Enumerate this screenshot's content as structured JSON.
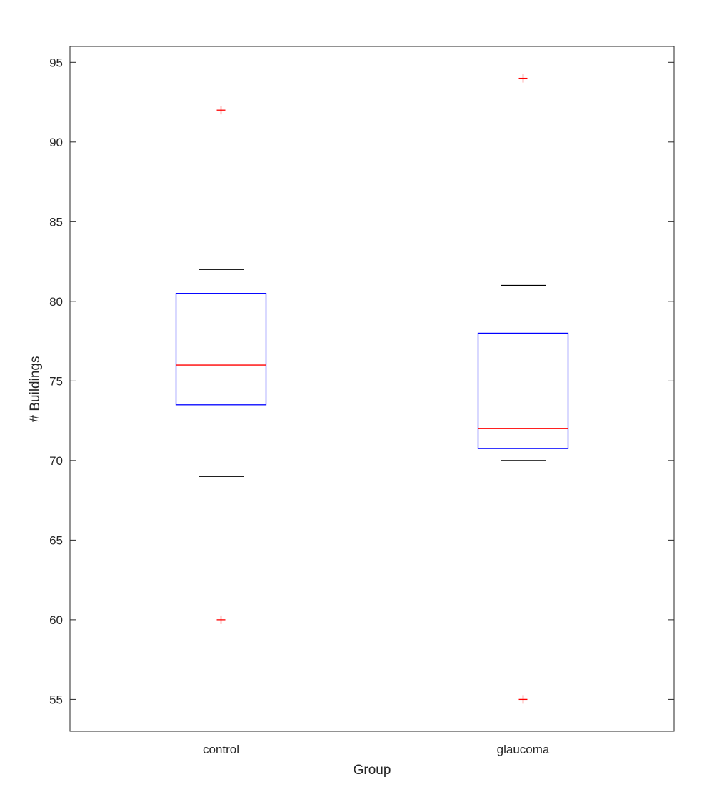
{
  "chart_data": {
    "type": "box",
    "title": "",
    "xlabel": "Group",
    "ylabel": "# Buildings",
    "ylim": [
      53,
      96
    ],
    "yticks": [
      55,
      60,
      65,
      70,
      75,
      80,
      85,
      90,
      95
    ],
    "ytick_labels": [
      "55",
      "60",
      "65",
      "70",
      "75",
      "80",
      "85",
      "90",
      "95"
    ],
    "grid": false,
    "categories": [
      "control",
      "glaucoma"
    ],
    "boxes": [
      {
        "name": "control",
        "whisker_low": 69,
        "q1": 73.5,
        "median": 76,
        "q3": 80.5,
        "whisker_high": 82,
        "outliers": [
          60,
          92
        ]
      },
      {
        "name": "glaucoma",
        "whisker_low": 70,
        "q1": 70.75,
        "median": 72,
        "q3": 78,
        "whisker_high": 81,
        "outliers": [
          55,
          94
        ]
      }
    ],
    "colors": {
      "box": "#0000ff",
      "median": "#ff0000",
      "whisker": "#000000",
      "outlier": "#ff0000",
      "axes": "#262626"
    }
  }
}
